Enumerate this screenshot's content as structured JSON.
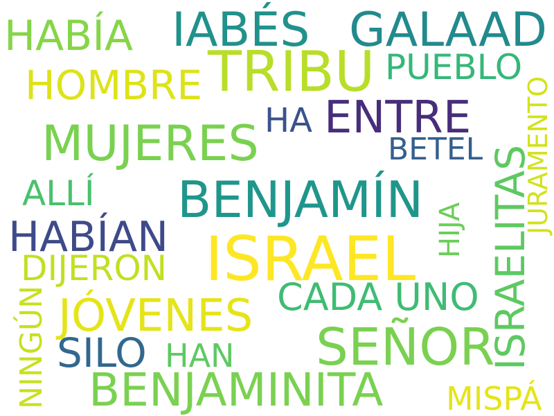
{
  "words": {
    "israel": {
      "text": "ISRAEL",
      "color": "#fde725"
    },
    "benjamin": {
      "text": "BENJAMÍN",
      "color": "#1f968b"
    },
    "tribu": {
      "text": "TRIBU",
      "color": "#b8de29"
    },
    "senor": {
      "text": "SEÑOR",
      "color": "#7ad151"
    },
    "mujeres": {
      "text": "MUJERES",
      "color": "#7ad151"
    },
    "israelitas": {
      "text": "ISRAELITAS",
      "color": "#5ec962"
    },
    "jabes": {
      "text": "IABÉS",
      "color": "#21918c"
    },
    "galaad": {
      "text": "GALAAD",
      "color": "#228a8d"
    },
    "entre": {
      "text": "ENTRE",
      "color": "#472d7b"
    },
    "benjaminita": {
      "text": "BENJAMINITA",
      "color": "#7ad151"
    },
    "jovenes": {
      "text": "JÓVENES",
      "color": "#e5e419"
    },
    "habian": {
      "text": "HABÍAN",
      "color": "#3e4a89"
    },
    "silo": {
      "text": "SILO",
      "color": "#31688e"
    },
    "cada_uno": {
      "text": "CADA UNO",
      "color": "#3fbc73"
    },
    "habia": {
      "text": "HABÍA",
      "color": "#86d549"
    },
    "hombre": {
      "text": "HOMBRE",
      "color": "#dde318"
    },
    "pueblo": {
      "text": "PUEBLO",
      "color": "#35b779"
    },
    "dijeron": {
      "text": "DIJERON",
      "color": "#c2df23"
    },
    "alli": {
      "text": "ALLÍ",
      "color": "#4ac16d"
    },
    "ha": {
      "text": "HA",
      "color": "#3b528b"
    },
    "betel": {
      "text": "BETEL",
      "color": "#355f8d"
    },
    "hija": {
      "text": "HIJA",
      "color": "#6ccd5a"
    },
    "juramento": {
      "text": "JURAMENTO",
      "color": "#d2e21b"
    },
    "ningun": {
      "text": "NINGÚN",
      "color": "#c8e020"
    },
    "han": {
      "text": "HAN",
      "color": "#5ec962"
    },
    "mispa": {
      "text": "MISPÁ",
      "color": "#e5e419"
    }
  }
}
